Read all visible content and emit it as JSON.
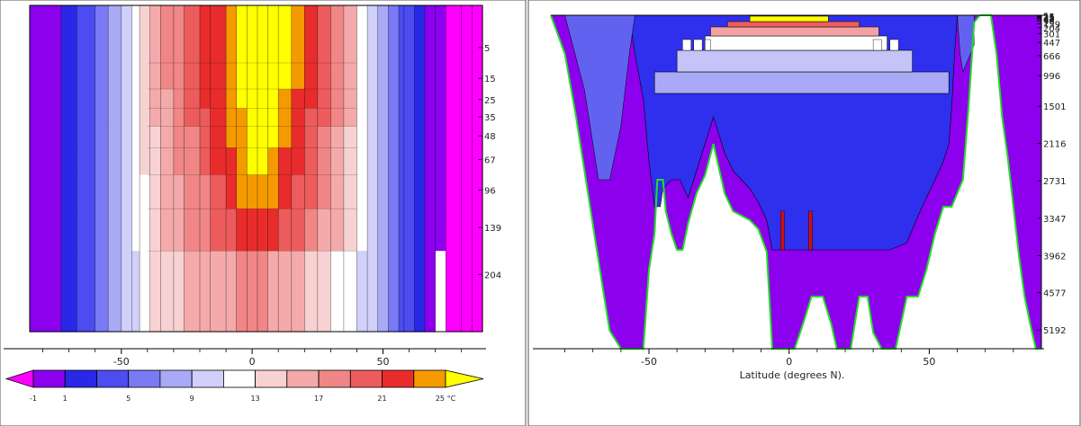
{
  "chart_data": [
    {
      "type": "heatmap",
      "panel": "upper ocean temperature section (left)",
      "x_ticks": [
        "-50",
        "0",
        "50"
      ],
      "depth_ticks": [
        "5",
        "15",
        "25",
        "35",
        "48",
        "67",
        "96",
        "139",
        "204"
      ],
      "xlim": [
        -85,
        88
      ],
      "depth_levels": [
        5,
        15,
        25,
        35,
        48,
        67,
        96,
        139,
        204,
        300
      ],
      "lat_bands": [
        -85,
        -73,
        -67,
        -60,
        -55,
        -50,
        -46,
        -43,
        -39,
        -35,
        -30,
        -26,
        -20,
        -16,
        -10,
        -6,
        -2,
        2,
        6,
        10,
        15,
        20,
        25,
        30,
        35,
        40,
        44,
        48,
        52,
        56,
        58,
        62,
        66,
        70,
        74,
        80,
        84,
        88
      ],
      "band_temps": [
        [
          -1,
          2,
          4,
          6,
          8,
          10,
          12,
          14,
          15,
          17,
          18,
          20,
          21,
          22,
          23,
          25,
          26,
          27,
          26,
          25,
          23,
          21,
          19,
          17,
          15,
          12,
          10,
          8,
          6,
          4,
          3,
          2,
          0,
          -1,
          -2,
          -2,
          -2
        ],
        [
          -1,
          2,
          4,
          6,
          8,
          10,
          12,
          14,
          15,
          17,
          18,
          19,
          21,
          22,
          23,
          25,
          26,
          26,
          26,
          25,
          23,
          21,
          19,
          17,
          15,
          12,
          10,
          8,
          6,
          4,
          3,
          2,
          0,
          -1,
          -2,
          -2,
          -2
        ],
        [
          -1,
          2,
          4,
          6,
          8,
          10,
          12,
          14,
          15,
          16,
          18,
          19,
          21,
          22,
          23,
          25,
          26,
          26,
          26,
          24,
          22,
          21,
          19,
          17,
          15,
          12,
          10,
          8,
          6,
          4,
          3,
          2,
          0,
          -1,
          -2,
          -2,
          -2
        ],
        [
          -1,
          2,
          4,
          6,
          8,
          10,
          12,
          13,
          15,
          16,
          17,
          19,
          20,
          22,
          23,
          24,
          26,
          26,
          26,
          24,
          22,
          20,
          19,
          17,
          15,
          12,
          10,
          8,
          6,
          4,
          3,
          2,
          0,
          -1,
          -2,
          -2,
          -2
        ],
        [
          -1,
          2,
          4,
          6,
          8,
          10,
          12,
          13,
          14,
          16,
          17,
          18,
          20,
          21,
          23,
          24,
          25,
          26,
          25,
          23,
          22,
          20,
          18,
          16,
          14,
          12,
          10,
          8,
          6,
          4,
          3,
          2,
          0,
          -1,
          -2,
          -2,
          -2
        ],
        [
          -1,
          2,
          4,
          6,
          8,
          10,
          11,
          13,
          14,
          15,
          17,
          18,
          19,
          21,
          22,
          24,
          25,
          25,
          24,
          22,
          21,
          19,
          18,
          16,
          14,
          12,
          10,
          8,
          6,
          4,
          3,
          2,
          0,
          -1,
          -2,
          -2,
          -2
        ],
        [
          -1,
          2,
          4,
          6,
          8,
          10,
          11,
          12,
          14,
          15,
          16,
          17,
          18,
          20,
          22,
          23,
          24,
          24,
          23,
          21,
          20,
          19,
          17,
          15,
          13,
          11,
          9,
          7,
          5,
          4,
          3,
          2,
          0,
          -1,
          -2,
          -2,
          -2
        ],
        [
          -1,
          2,
          4,
          6,
          8,
          9,
          11,
          12,
          13,
          15,
          16,
          17,
          18,
          19,
          20,
          21,
          22,
          22,
          21,
          20,
          19,
          18,
          16,
          15,
          13,
          11,
          9,
          7,
          5,
          4,
          3,
          2,
          0,
          -1,
          -2,
          -2,
          -2
        ],
        [
          -1,
          2,
          4,
          6,
          8,
          9,
          10,
          11,
          13,
          14,
          14,
          15,
          15,
          16,
          16,
          17,
          17,
          17,
          16,
          16,
          15,
          14,
          13,
          12,
          11,
          10,
          9,
          7,
          5,
          4,
          3,
          2,
          0,
          -1,
          -2,
          -2,
          -2
        ]
      ],
      "masked_cells": [
        [
          8,
          33
        ]
      ]
    },
    {
      "type": "heatmap",
      "panel": "full-depth ocean temperature section (right)",
      "xlabel": "Latitude (degrees N).",
      "x_ticks": [
        "-50",
        "0",
        "50"
      ],
      "depth_ticks": [
        "5",
        "15",
        "25",
        "35",
        "48",
        "67",
        "96",
        "139",
        "204",
        "301",
        "447",
        "666",
        "996",
        "1501",
        "2116",
        "2731",
        "3347",
        "3962",
        "4577",
        "5192"
      ],
      "xlim": [
        -85,
        90
      ],
      "ylim_depth": [
        0,
        5500
      ],
      "colors_by_zone": {
        "surface": "#ffff00",
        "thermocline": "#f2a2a2",
        "intermediate": "#a9a9f5",
        "deep": "#2f2fee",
        "bottom": "#8c00ee"
      }
    }
  ],
  "colorbar": {
    "labels": [
      "-1",
      "1",
      "5",
      "9",
      "13",
      "17",
      "21",
      "25 °C"
    ],
    "levels": [
      -1,
      1,
      3,
      5,
      7,
      9,
      11,
      13,
      15,
      17,
      19,
      21,
      23,
      25
    ],
    "colors": [
      "#8c00ee",
      "#2828e6",
      "#4c4cf0",
      "#7a7af4",
      "#a9a9f6",
      "#d0d0fa",
      "#ffffff",
      "#f8d2d2",
      "#f4aaaa",
      "#f08686",
      "#ec5c5c",
      "#e82c2c",
      "#f49a00"
    ],
    "under_color": "#ff00ff",
    "over_color": "#ffff00"
  }
}
